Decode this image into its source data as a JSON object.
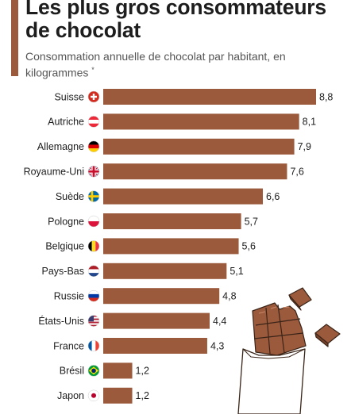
{
  "header": {
    "title": "Les plus gros consommateurs de chocolat",
    "subtitle": "Consommation annuelle de chocolat par habitant, en kilogrammes",
    "asterisk": "*"
  },
  "colors": {
    "bar": "#9c5a3c",
    "accent": "#9c5a3c",
    "chocolate": "#9c5a3c",
    "chocolate_outline": "#3a2418"
  },
  "chart_data": {
    "type": "bar",
    "orientation": "horizontal",
    "categories": [
      "Suisse",
      "Autriche",
      "Allemagne",
      "Royaume-Uni",
      "Suède",
      "Pologne",
      "Belgique",
      "Pays-Bas",
      "Russie",
      "États-Unis",
      "France",
      "Brésil",
      "Japon"
    ],
    "values": [
      8.8,
      8.1,
      7.9,
      7.6,
      6.6,
      5.7,
      5.6,
      5.1,
      4.8,
      4.4,
      4.3,
      1.2,
      1.2
    ],
    "value_labels": [
      "8,8",
      "8,1",
      "7,9",
      "7,6",
      "6,6",
      "5,7",
      "5,6",
      "5,1",
      "4,8",
      "4,4",
      "4,3",
      "1,2",
      "1,2"
    ],
    "flags": [
      "switzerland-flag-icon",
      "austria-flag-icon",
      "germany-flag-icon",
      "uk-flag-icon",
      "sweden-flag-icon",
      "poland-flag-icon",
      "belgium-flag-icon",
      "netherlands-flag-icon",
      "russia-flag-icon",
      "usa-flag-icon",
      "france-flag-icon",
      "brazil-flag-icon",
      "japan-flag-icon"
    ],
    "xlim": [
      0,
      8.8
    ],
    "grid": false,
    "legend": "none"
  },
  "decoration": {
    "illustration": "chocolate-bar-icon"
  }
}
